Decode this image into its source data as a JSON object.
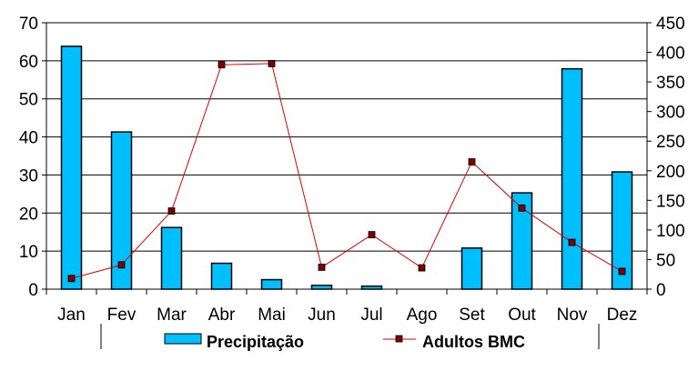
{
  "chart_data": {
    "type": "bar",
    "categories": [
      "Jan",
      "Fev",
      "Mar",
      "Abr",
      "Mai",
      "Jun",
      "Jul",
      "Ago",
      "Set",
      "Out",
      "Nov",
      "Dez"
    ],
    "series": [
      {
        "name": "Precipitação",
        "type": "bar",
        "axis": "left",
        "color": "#00BFFF",
        "values": [
          63.8,
          41.3,
          16.2,
          6.8,
          2.5,
          1.0,
          0.8,
          0.0,
          10.8,
          25.3,
          57.9,
          30.8
        ]
      },
      {
        "name": "Adultos BMC",
        "type": "line",
        "axis": "right",
        "color": "#E00000",
        "marker_color": "#800000",
        "values": [
          18,
          41,
          132,
          379,
          381,
          37,
          92,
          36,
          215,
          137,
          79,
          30
        ]
      }
    ],
    "y_left": {
      "min": 0,
      "max": 70,
      "ticks": [
        0,
        10,
        20,
        30,
        40,
        50,
        60,
        70
      ]
    },
    "y_right": {
      "min": 0,
      "max": 450,
      "ticks": [
        0,
        50,
        100,
        150,
        200,
        250,
        300,
        350,
        400,
        450
      ]
    },
    "grid": true,
    "legend_position": "bottom",
    "title": "",
    "xlabel": "",
    "ylabel": ""
  }
}
